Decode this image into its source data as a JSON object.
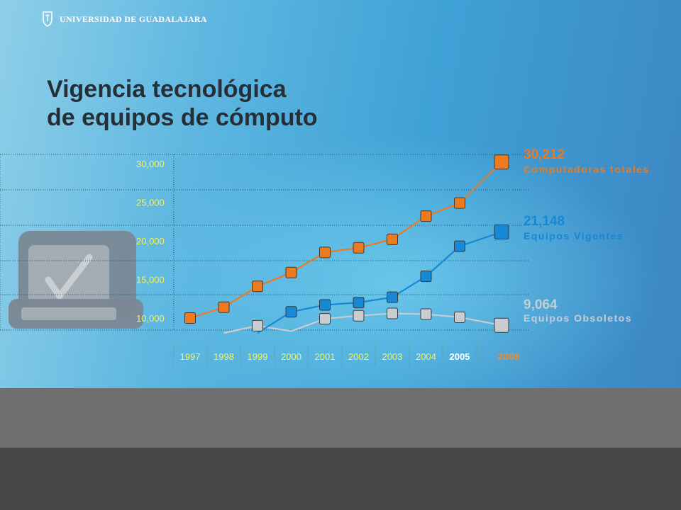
{
  "header": {
    "logo_text": "UNIVERSIDAD DE GUADALAJARA",
    "title_line1": "Vigencia tecnológica",
    "title_line2": "de equipos de cómputo"
  },
  "colors": {
    "total": "#ee7a1e",
    "vigentes": "#1788d6",
    "obsoletos": "#c9ccd0",
    "tick_text": "#f4f25a"
  },
  "decor": {
    "laptop_icon": "laptop-checkmark-icon"
  },
  "chart_data": {
    "type": "line",
    "categories": [
      "1997",
      "1998",
      "1999",
      "2000",
      "2001",
      "2002",
      "2003",
      "2004",
      "2005",
      "2006"
    ],
    "y_ticks": [
      "30,000",
      "25,000",
      "20,000",
      "15,000",
      "10,000"
    ],
    "ylim": [
      8000,
      30500
    ],
    "grid": true,
    "series": [
      {
        "key": "total",
        "name": "Computadoras totales",
        "label_value": "30,212",
        "values": [
          10000,
          11400,
          14100,
          15900,
          18500,
          19100,
          20200,
          23200,
          24900,
          30212
        ]
      },
      {
        "key": "vigentes",
        "name": "Equipos Vigentes",
        "label_value": "21,148",
        "values": [
          null,
          null,
          7000,
          10800,
          11700,
          12000,
          12700,
          15400,
          19300,
          21148
        ]
      },
      {
        "key": "obsoletos",
        "name": "Equipos Obsoletos",
        "label_value": "9,064",
        "values": [
          null,
          7600,
          9000,
          8300,
          9900,
          10300,
          10600,
          10500,
          10100,
          9064
        ]
      }
    ]
  }
}
